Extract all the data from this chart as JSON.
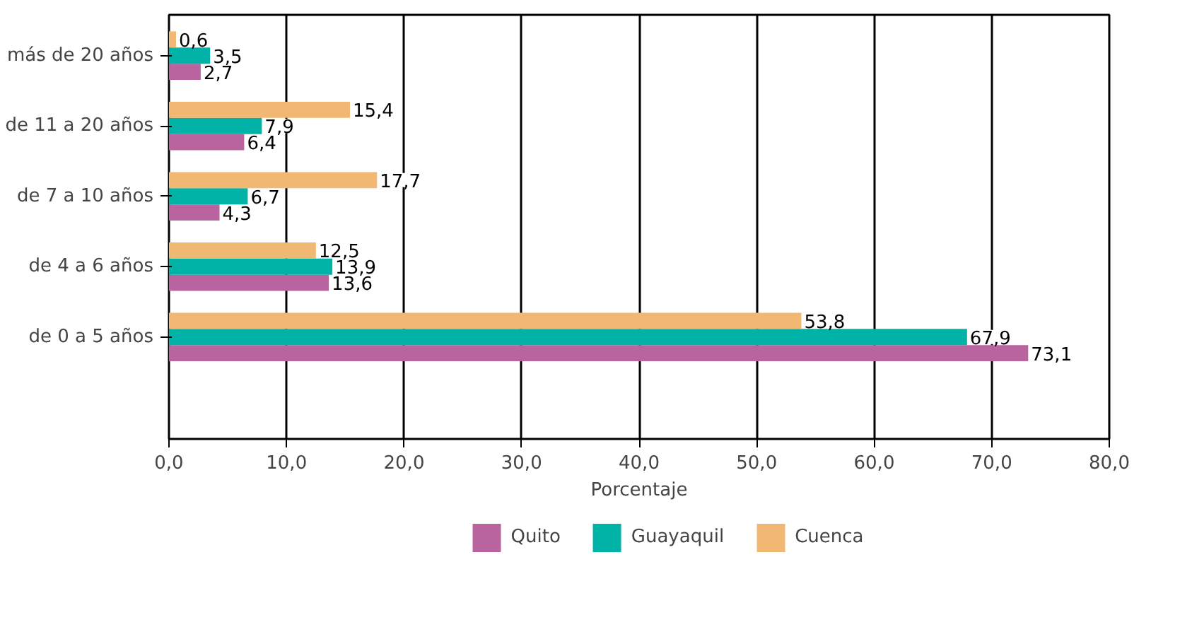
{
  "chart_data": {
    "type": "bar",
    "orientation": "horizontal",
    "xlabel": "Porcentaje",
    "categories": [
      "más de 20 años",
      "de 11 a 20 años",
      "de 7 a 10 años",
      "de 4 a 6 años",
      "de 0 a 5 años"
    ],
    "series": [
      {
        "name": "Quito",
        "color": "#b9649f",
        "values": [
          2.7,
          6.4,
          4.3,
          13.6,
          73.1
        ],
        "value_labels": [
          "2,7",
          "6,4",
          "4,3",
          "13,6",
          "73,1"
        ]
      },
      {
        "name": "Guayaquil",
        "color": "#00b3a6",
        "values": [
          3.5,
          7.9,
          6.7,
          13.9,
          67.9
        ],
        "value_labels": [
          "3,5",
          "7,9",
          "6,7",
          "13,9",
          "67,9"
        ]
      },
      {
        "name": "Cuenca",
        "color": "#f0b872",
        "values": [
          0.6,
          15.4,
          17.7,
          12.5,
          53.8
        ],
        "value_labels": [
          "0,6",
          "15,4",
          "17,7",
          "12,5",
          "53,8"
        ]
      }
    ],
    "xlim": [
      0,
      80
    ],
    "xticks": [
      {
        "value": 0,
        "label": "0,0"
      },
      {
        "value": 10,
        "label": "10,0"
      },
      {
        "value": 20,
        "label": "20,0"
      },
      {
        "value": 30,
        "label": "30,0"
      },
      {
        "value": 40,
        "label": "40,0"
      },
      {
        "value": 50,
        "label": "50,0"
      },
      {
        "value": 60,
        "label": "60,0"
      },
      {
        "value": 70,
        "label": "70,0"
      },
      {
        "value": 80,
        "label": "80,0"
      }
    ],
    "grid": "x",
    "legend": "bottom"
  }
}
